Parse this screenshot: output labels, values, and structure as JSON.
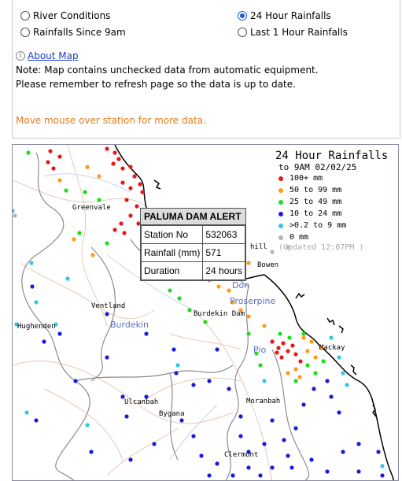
{
  "options": {
    "river_conditions": "River Conditions",
    "rain_24h": "24 Hour Rainfalls",
    "rain_since_9am": "Rainfalls Since 9am",
    "rain_1h": "Last 1 Hour Rainfalls",
    "selected": "24 Hour Rainfalls"
  },
  "about_map": "About Map",
  "note_line1": "Note: Map contains unchecked data from automatic equipment.",
  "note_line2": "Please remember to refresh page so the data is up to date.",
  "hint": "Move mouse over station for more data.",
  "legend": {
    "title": "24 Hour Rainfalls",
    "subtitle": "to 9AM 02/02/25",
    "rows": [
      {
        "label": "100+ mm",
        "color": "#e81818"
      },
      {
        "label": "50  to 99 mm",
        "color": "#ff9a1e"
      },
      {
        "label": "25  to 49 mm",
        "color": "#1edc1e"
      },
      {
        "label": "10  to 24 mm",
        "color": "#1a1ad8"
      },
      {
        "label": ">0.2 to 9 mm",
        "color": "#30c8e8"
      },
      {
        "label": "0 mm",
        "color": "#b4b4b4"
      }
    ],
    "updated": "(Updated 12:07PM  )"
  },
  "places": {
    "greenvale": "Greenvale",
    "ventland": "Ventland",
    "hughenden": "Hughenden",
    "burdekin": "Burdekin",
    "burdekin_dam": "Burdekin Dam",
    "bowen": "Bowen",
    "don": "Don",
    "proserpine": "Proserpine",
    "pioneer": "Pio",
    "mackay": "Mackay",
    "hill": "hill",
    "moranbah": "Moranbah",
    "ulcanbah": "Ulcanbah",
    "bygana": "Bygana",
    "clermont": "Clermont"
  },
  "popup": {
    "title": "PALUMA DAM ALERT",
    "station_label": "Station No",
    "station_value": "532063",
    "rain_label": "Rainfall (mm)",
    "rain_value": "571",
    "duration_label": "Duration",
    "duration_value": "24 hours"
  }
}
